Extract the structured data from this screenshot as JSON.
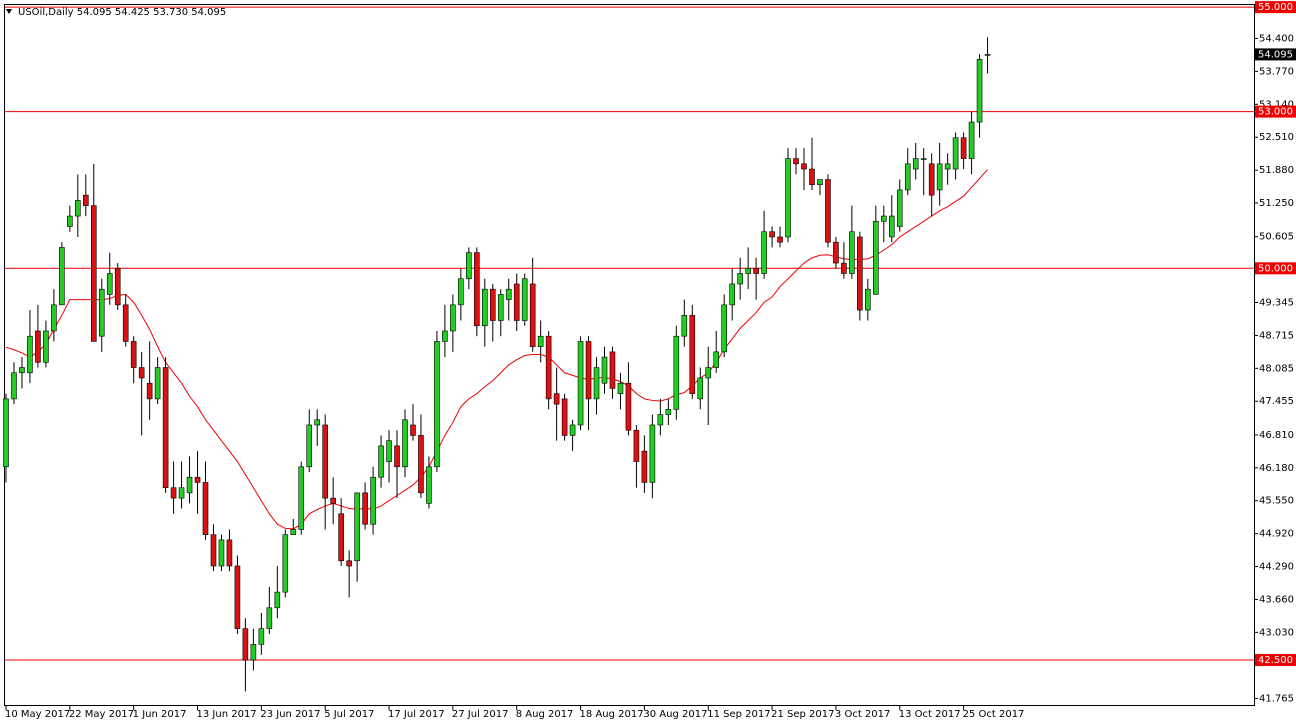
{
  "chart_data": {
    "type": "candlestick",
    "title": "USOil,Daily  54.095 54.425 53.730 54.095",
    "categories": [
      "10 May 2017",
      null,
      null,
      null,
      null,
      null,
      null,
      null,
      "22 May 2017",
      null,
      null,
      null,
      null,
      null,
      null,
      null,
      "1 Jun 2017",
      null,
      null,
      null,
      null,
      null,
      null,
      null,
      "13 Jun 2017",
      null,
      null,
      null,
      null,
      null,
      null,
      null,
      "23 Jun 2017",
      null,
      null,
      null,
      null,
      null,
      null,
      null,
      "5 Jul 2017",
      null,
      null,
      null,
      null,
      null,
      null,
      null,
      "17 Jul 2017",
      null,
      null,
      null,
      null,
      null,
      null,
      null,
      "27 Jul 2017",
      null,
      null,
      null,
      null,
      null,
      null,
      null,
      "8 Aug 2017",
      null,
      null,
      null,
      null,
      null,
      null,
      null,
      "18 Aug 2017",
      null,
      null,
      null,
      null,
      null,
      null,
      null,
      "30 Aug 2017",
      null,
      null,
      null,
      null,
      null,
      null,
      null,
      "11 Sep 2017",
      null,
      null,
      null,
      null,
      null,
      null,
      null,
      "21 Sep 2017",
      null,
      null,
      null,
      null,
      null,
      null,
      null,
      "3 Oct 2017",
      null,
      null,
      null,
      null,
      null,
      null,
      null,
      "13 Oct 2017",
      null,
      null,
      null,
      null,
      null,
      null,
      null,
      "25 Oct 2017",
      null,
      null,
      null
    ],
    "open": [
      46.2,
      47.5,
      48.0,
      48.0,
      48.8,
      48.2,
      48.8,
      49.3,
      50.8,
      51.0,
      51.4,
      51.2,
      48.7,
      49.5,
      50.0,
      49.3,
      48.6,
      48.1,
      47.8,
      47.5,
      48.1,
      45.8,
      45.6,
      45.7,
      46.0,
      45.9,
      44.9,
      44.3,
      44.8,
      44.3,
      43.1,
      42.5,
      42.8,
      43.1,
      43.5,
      43.8,
      44.9,
      45.0,
      46.2,
      47.0,
      47.0,
      45.6,
      45.3,
      44.4,
      44.4,
      45.7,
      45.1,
      46.0,
      46.3,
      46.6,
      46.2,
      47.0,
      46.8,
      45.5,
      46.2,
      48.6,
      48.8,
      49.3,
      49.8,
      50.3,
      48.9,
      49.6,
      49.0,
      49.4,
      49.7,
      49.0,
      49.7,
      48.5,
      48.7,
      47.6,
      47.5,
      46.8,
      47.0,
      48.6,
      47.5,
      47.8,
      48.4,
      47.6,
      47.8,
      46.9,
      46.5,
      45.9,
      47.0,
      47.2,
      47.3,
      48.7,
      49.1,
      47.5,
      47.9,
      48.1,
      48.4,
      49.3,
      49.7,
      49.9,
      50.0,
      49.9,
      50.7,
      50.6,
      50.6,
      52.1,
      52.0,
      51.9,
      51.6,
      51.7,
      50.5,
      50.1,
      49.9,
      50.6,
      49.2,
      49.5,
      50.9,
      50.6,
      50.8,
      51.5,
      51.9,
      52.1,
      52.0,
      51.5,
      51.9,
      51.9,
      52.5,
      52.1,
      52.8,
      54.095
    ],
    "high": [
      47.6,
      48.2,
      48.3,
      49.2,
      49.3,
      49.0,
      49.6,
      50.5,
      51.2,
      51.8,
      51.8,
      52.0,
      49.8,
      50.3,
      50.1,
      49.5,
      48.7,
      48.4,
      48.6,
      48.3,
      48.3,
      46.3,
      46.3,
      46.4,
      46.5,
      46.3,
      45.1,
      44.9,
      45.0,
      44.5,
      43.3,
      43.1,
      43.4,
      43.9,
      44.3,
      45.0,
      45.2,
      46.3,
      47.3,
      47.3,
      47.2,
      46.0,
      45.6,
      44.6,
      45.7,
      45.9,
      46.2,
      46.8,
      46.9,
      46.9,
      47.3,
      47.4,
      47.2,
      46.4,
      48.8,
      49.3,
      49.5,
      50.0,
      50.4,
      50.4,
      49.8,
      49.7,
      49.6,
      49.8,
      49.9,
      49.9,
      50.2,
      49.0,
      48.8,
      48.1,
      47.6,
      47.1,
      48.7,
      48.7,
      48.3,
      48.5,
      48.5,
      48.0,
      48.2,
      47.0,
      46.8,
      47.2,
      47.5,
      47.5,
      48.9,
      49.4,
      49.3,
      48.1,
      48.5,
      48.8,
      49.5,
      50.0,
      50.2,
      50.4,
      50.2,
      51.1,
      50.8,
      50.8,
      52.3,
      52.3,
      52.3,
      52.5,
      51.7,
      51.8,
      50.6,
      50.5,
      51.2,
      50.7,
      49.8,
      51.2,
      51.2,
      51.4,
      51.7,
      52.3,
      52.4,
      52.3,
      52.2,
      52.4,
      52.2,
      52.6,
      52.6,
      53.0,
      54.1,
      54.425
    ],
    "low": [
      45.9,
      47.4,
      47.7,
      47.8,
      48.1,
      48.1,
      48.6,
      49.3,
      50.7,
      50.6,
      51.0,
      48.6,
      48.4,
      49.3,
      49.2,
      48.5,
      47.8,
      46.8,
      47.1,
      47.4,
      45.7,
      45.3,
      45.4,
      45.5,
      45.3,
      44.8,
      44.2,
      44.2,
      44.2,
      43.0,
      41.9,
      42.3,
      42.6,
      43.0,
      43.3,
      43.7,
      44.9,
      44.9,
      46.1,
      46.6,
      45.0,
      45.1,
      44.3,
      43.7,
      44.0,
      45.0,
      44.9,
      45.8,
      45.9,
      45.6,
      46.0,
      46.7,
      45.6,
      45.4,
      46.1,
      48.3,
      48.4,
      49.0,
      49.6,
      48.7,
      48.5,
      48.6,
      48.7,
      49.0,
      48.8,
      48.9,
      48.4,
      48.2,
      47.3,
      46.7,
      46.7,
      46.5,
      46.9,
      46.9,
      47.2,
      47.6,
      47.5,
      47.3,
      46.8,
      45.8,
      45.7,
      45.6,
      46.8,
      47.0,
      47.1,
      48.5,
      47.5,
      47.3,
      47.0,
      48.0,
      48.3,
      49.0,
      49.4,
      49.6,
      49.4,
      49.8,
      50.4,
      50.4,
      50.5,
      51.8,
      51.5,
      51.5,
      51.4,
      50.4,
      50.0,
      49.8,
      49.8,
      49.0,
      49.0,
      49.5,
      50.5,
      50.5,
      50.7,
      51.4,
      51.7,
      51.4,
      51.0,
      51.2,
      51.6,
      51.7,
      51.9,
      51.8,
      52.5,
      53.73
    ],
    "close": [
      47.5,
      48.0,
      48.1,
      48.7,
      48.2,
      48.8,
      49.3,
      50.4,
      51.0,
      51.3,
      51.2,
      48.6,
      49.6,
      49.9,
      49.3,
      48.6,
      48.1,
      47.9,
      47.5,
      48.1,
      45.8,
      45.6,
      45.8,
      46.0,
      45.9,
      44.9,
      44.3,
      44.8,
      44.3,
      43.1,
      42.5,
      42.8,
      43.1,
      43.5,
      43.8,
      44.9,
      45.0,
      46.2,
      47.0,
      47.1,
      45.6,
      45.5,
      44.4,
      44.3,
      45.7,
      45.1,
      46.0,
      46.6,
      46.7,
      46.2,
      47.1,
      46.8,
      45.7,
      46.2,
      48.6,
      48.8,
      49.3,
      49.8,
      50.3,
      48.9,
      49.6,
      49.0,
      49.5,
      49.6,
      49.0,
      49.8,
      48.5,
      48.7,
      47.5,
      47.4,
      46.8,
      47.0,
      48.6,
      47.5,
      48.1,
      48.3,
      47.7,
      47.8,
      46.9,
      46.3,
      45.9,
      47.0,
      47.2,
      47.3,
      48.7,
      49.1,
      47.6,
      47.9,
      48.1,
      48.4,
      49.3,
      49.7,
      49.9,
      50.0,
      49.9,
      50.7,
      50.6,
      50.5,
      52.1,
      52.0,
      51.9,
      51.6,
      51.7,
      50.5,
      50.1,
      49.9,
      50.7,
      49.2,
      49.6,
      50.9,
      51.0,
      51.0,
      51.5,
      52.0,
      52.1,
      52.1,
      51.4,
      52.0,
      52.0,
      52.5,
      52.1,
      52.8,
      54.0,
      54.095
    ],
    "up_color": "#22cc22",
    "down_color": "#dd1111",
    "lines": [
      {
        "color": "#ee0000",
        "values": [
          48.49,
          48.44,
          48.38,
          48.3,
          48.4,
          48.55,
          48.83,
          49.1,
          49.4,
          49.4,
          49.4,
          49.4,
          49.4,
          49.42,
          49.48,
          49.5,
          49.35,
          49.1,
          48.83,
          48.5,
          48.2,
          48.0,
          47.8,
          47.55,
          47.35,
          47.1,
          46.9,
          46.7,
          46.5,
          46.3,
          46.05,
          45.8,
          45.55,
          45.3,
          45.1,
          45.02,
          45.01,
          45.1,
          45.3,
          45.38,
          45.45,
          45.5,
          45.45,
          45.4,
          45.39,
          45.4,
          45.39,
          45.45,
          45.55,
          45.65,
          45.75,
          45.85,
          46.0,
          46.2,
          46.5,
          46.8,
          47.05,
          47.35,
          47.5,
          47.6,
          47.73,
          47.85,
          48.0,
          48.15,
          48.25,
          48.33,
          48.35,
          48.35,
          48.3,
          48.15,
          48.0,
          47.95,
          47.9,
          47.87,
          47.9,
          47.91,
          47.88,
          47.83,
          47.75,
          47.6,
          47.5,
          47.47,
          47.46,
          47.5,
          47.58,
          47.62,
          47.75,
          47.9,
          48.0,
          48.2,
          48.45,
          48.65,
          48.85,
          49.0,
          49.15,
          49.35,
          49.45,
          49.65,
          49.8,
          49.95,
          50.1,
          50.2,
          50.25,
          50.26,
          50.22,
          50.18,
          50.17,
          50.17,
          50.18,
          50.25,
          50.35,
          50.45,
          50.6,
          50.7,
          50.8,
          50.9,
          51.0,
          51.1,
          51.18,
          51.28,
          51.38,
          51.55,
          51.72,
          51.89
        ]
      }
    ],
    "levels": [
      {
        "value": 55,
        "label": "55.000",
        "color": "#ee0000"
      },
      {
        "value": 53,
        "label": "53.000",
        "color": "#ee0000"
      },
      {
        "value": 50,
        "label": "50.000",
        "color": "#ee0000"
      },
      {
        "value": 42.5,
        "label": "42.500",
        "color": "#ee0000"
      }
    ],
    "ylim": [
      41.62,
      55.06
    ],
    "yticks": [
      {
        "value": 54.4,
        "label": "54.400"
      },
      {
        "value": 53.77,
        "label": "53.770"
      },
      {
        "value": 53.14,
        "label": "53.140"
      },
      {
        "value": 52.51,
        "label": "52.510"
      },
      {
        "value": 51.88,
        "label": "51.880"
      },
      {
        "value": 51.25,
        "label": "51.250"
      },
      50.605,
      {
        "value": 49.345,
        "label": "49.345"
      },
      48.715,
      48.085,
      47.455,
      {
        "value": 46.81,
        "label": "46.810"
      },
      {
        "value": 46.18,
        "label": "46.180"
      },
      {
        "value": 45.55,
        "label": "45.550"
      },
      {
        "value": 44.92,
        "label": "44.920"
      },
      {
        "value": 44.29,
        "label": "44.290"
      },
      {
        "value": 43.66,
        "label": "43.660"
      },
      {
        "value": 43.03,
        "label": "43.030"
      },
      41.765
    ]
  }
}
